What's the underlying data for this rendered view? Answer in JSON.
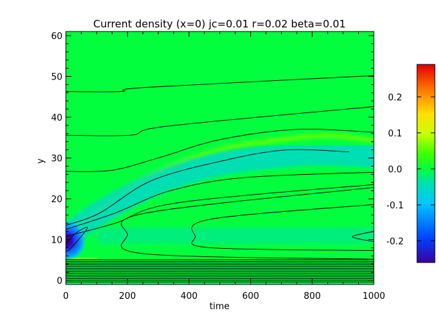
{
  "chart_data": {
    "type": "heatmap",
    "title": "Current density (x=0) jc=0.01 r=0.02 beta=0.01",
    "xlabel": "time",
    "ylabel": "y",
    "xlim": [
      0,
      1000
    ],
    "ylim": [
      -1,
      61
    ],
    "xticks": [
      0,
      200,
      400,
      600,
      800,
      1000
    ],
    "xtick_labels": [
      "0",
      "200",
      "400",
      "600",
      "800",
      "1000"
    ],
    "yticks": [
      0,
      10,
      20,
      30,
      40,
      50,
      60
    ],
    "ytick_labels": [
      "0",
      "10",
      "20",
      "30",
      "40",
      "50",
      "60"
    ],
    "colorbar": {
      "range": [
        -0.26,
        0.29
      ],
      "ticks": [
        -0.2,
        -0.1,
        0.0,
        0.1,
        0.2
      ],
      "tick_labels": [
        "-0.2",
        "-0.1",
        "0.0",
        "0.1",
        "0.2"
      ],
      "colormap": "rainbow"
    },
    "background_value": 0.0,
    "contours": [
      {
        "t": [
          0,
          180,
          260,
          1000
        ],
        "y": [
          46.3,
          46.3,
          47.3,
          50.2
        ]
      },
      {
        "t": [
          0,
          210,
          330,
          1000
        ],
        "y": [
          35.6,
          35.6,
          37.8,
          42.6
        ]
      },
      {
        "t": [
          0,
          150,
          300,
          500,
          750,
          1000
        ],
        "y": [
          26.7,
          27.0,
          30.0,
          34.5,
          37.0,
          36.3
        ]
      },
      {
        "t": [
          0,
          110,
          280,
          520,
          720,
          920
        ],
        "y": [
          13.5,
          16.5,
          24.5,
          29.5,
          32.0,
          31.5
        ]
      },
      {
        "t": [
          0,
          160,
          340,
          580,
          1000
        ],
        "y": [
          12.5,
          16.5,
          22.0,
          25.2,
          26.5
        ]
      },
      {
        "t": [
          0,
          160,
          360,
          1000
        ],
        "y": [
          10.8,
          14.0,
          19.0,
          23.5
        ]
      }
    ],
    "closed_contours": [
      {
        "t": [
          1000,
          260,
          200,
          260,
          1000
        ],
        "y": [
          22.8,
          16.5,
          11.2,
          6.5,
          5.2
        ]
      },
      {
        "t": [
          1000,
          470,
          420,
          470,
          1000
        ],
        "y": [
          18.6,
          15.0,
          10.7,
          8.0,
          7.3
        ]
      },
      {
        "t": [
          1000,
          930,
          1000
        ],
        "y": [
          12.0,
          10.7,
          9.5
        ]
      },
      {
        "t": [
          0,
          18,
          70,
          40,
          5,
          0
        ],
        "y": [
          7.0,
          8.0,
          12.8,
          12.0,
          9.5,
          8.5
        ]
      }
    ],
    "features": [
      {
        "kind": "ridge",
        "value": 0.06,
        "t": [
          0,
          120,
          300,
          500,
          700,
          850,
          1000
        ],
        "y": [
          11.5,
          18.0,
          26.5,
          32.0,
          34.5,
          35.5,
          34.3
        ]
      },
      {
        "kind": "trough",
        "value": -0.07,
        "t": [
          0,
          100,
          300,
          500,
          700,
          850,
          1000
        ],
        "y": [
          10.5,
          16.0,
          24.0,
          28.5,
          30.5,
          31.0,
          30.5
        ]
      },
      {
        "kind": "core",
        "value": -0.26,
        "t": 0,
        "y": 9.7
      },
      {
        "kind": "band",
        "value": -0.03,
        "t": [
          100,
          1000
        ],
        "y": [
          11.0,
          11.0
        ]
      },
      {
        "kind": "streak",
        "value": 0.12,
        "t": [
          20,
          100
        ],
        "y": [
          5.5,
          5.0
        ]
      }
    ]
  }
}
